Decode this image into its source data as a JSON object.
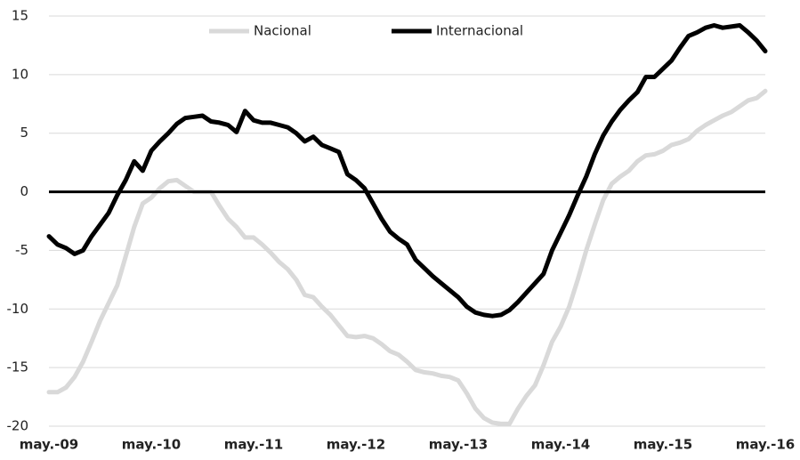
{
  "chart_data": {
    "type": "line",
    "categories": [
      "may.-09",
      null,
      null,
      null,
      null,
      null,
      null,
      null,
      null,
      null,
      null,
      null,
      "may.-10",
      null,
      null,
      null,
      null,
      null,
      null,
      null,
      null,
      null,
      null,
      null,
      "may.-11",
      null,
      null,
      null,
      null,
      null,
      null,
      null,
      null,
      null,
      null,
      null,
      "may.-12",
      null,
      null,
      null,
      null,
      null,
      null,
      null,
      null,
      null,
      null,
      null,
      "may.-13",
      null,
      null,
      null,
      null,
      null,
      null,
      null,
      null,
      null,
      null,
      null,
      "may.-14",
      null,
      null,
      null,
      null,
      null,
      null,
      null,
      null,
      null,
      null,
      null,
      "may.-15",
      null,
      null,
      null,
      null,
      null,
      null,
      null,
      null,
      null,
      null,
      null,
      "may.-16"
    ],
    "series": [
      {
        "name": "Nacional",
        "color": "#d9d9d9",
        "values": [
          -17.1,
          -17.1,
          -16.7,
          -15.8,
          -14.5,
          -12.8,
          -11.0,
          -9.5,
          -8.0,
          -5.5,
          -3.0,
          -1.0,
          -0.5,
          0.3,
          0.9,
          1.0,
          0.5,
          0.0,
          0.0,
          0.0,
          -1.2,
          -2.3,
          -3.0,
          -3.9,
          -3.9,
          -4.5,
          -5.2,
          -6.0,
          -6.6,
          -7.5,
          -8.8,
          -9.0,
          -9.8,
          -10.5,
          -11.4,
          -12.3,
          -12.4,
          -12.3,
          -12.5,
          -13.0,
          -13.6,
          -13.9,
          -14.5,
          -15.2,
          -15.4,
          -15.5,
          -15.7,
          -15.8,
          -16.1,
          -17.2,
          -18.5,
          -19.3,
          -19.7,
          -19.8,
          -19.8,
          -18.5,
          -17.4,
          -16.5,
          -14.8,
          -12.8,
          -11.5,
          -9.8,
          -7.5,
          -5.0,
          -2.8,
          -0.7,
          0.7,
          1.3,
          1.8,
          2.6,
          3.1,
          3.2,
          3.5,
          4.0,
          4.2,
          4.5,
          5.2,
          5.7,
          6.1,
          6.5,
          6.8,
          7.3,
          7.8,
          8.0,
          8.6
        ]
      },
      {
        "name": "Internacional",
        "color": "#000000",
        "values": [
          -3.8,
          -4.5,
          -4.8,
          -5.3,
          -5.0,
          -3.8,
          -2.8,
          -1.8,
          -0.3,
          1.0,
          2.6,
          1.8,
          3.5,
          4.3,
          5.0,
          5.8,
          6.3,
          6.4,
          6.5,
          6.0,
          5.9,
          5.7,
          5.1,
          6.9,
          6.1,
          5.9,
          5.9,
          5.7,
          5.5,
          5.0,
          4.3,
          4.7,
          4.0,
          3.7,
          3.4,
          1.5,
          1.0,
          0.3,
          -1.0,
          -2.3,
          -3.4,
          -4.0,
          -4.5,
          -5.8,
          -6.5,
          -7.2,
          -7.8,
          -8.4,
          -9.0,
          -9.8,
          -10.3,
          -10.5,
          -10.6,
          -10.5,
          -10.1,
          -9.4,
          -8.6,
          -7.8,
          -7.0,
          -5.0,
          -3.5,
          -2.0,
          -0.3,
          1.3,
          3.2,
          4.8,
          6.0,
          7.0,
          7.8,
          8.5,
          9.8,
          9.8,
          10.5,
          11.2,
          12.3,
          13.3,
          13.6,
          14.0,
          14.2,
          14.0,
          14.1,
          14.2,
          13.6,
          12.9,
          12.0
        ]
      }
    ],
    "ylim": [
      -20,
      15
    ],
    "yticks": [
      -20,
      -15,
      -10,
      -5,
      0,
      5,
      10,
      15
    ],
    "grid": true,
    "reference_line": 0,
    "legend": "top"
  }
}
